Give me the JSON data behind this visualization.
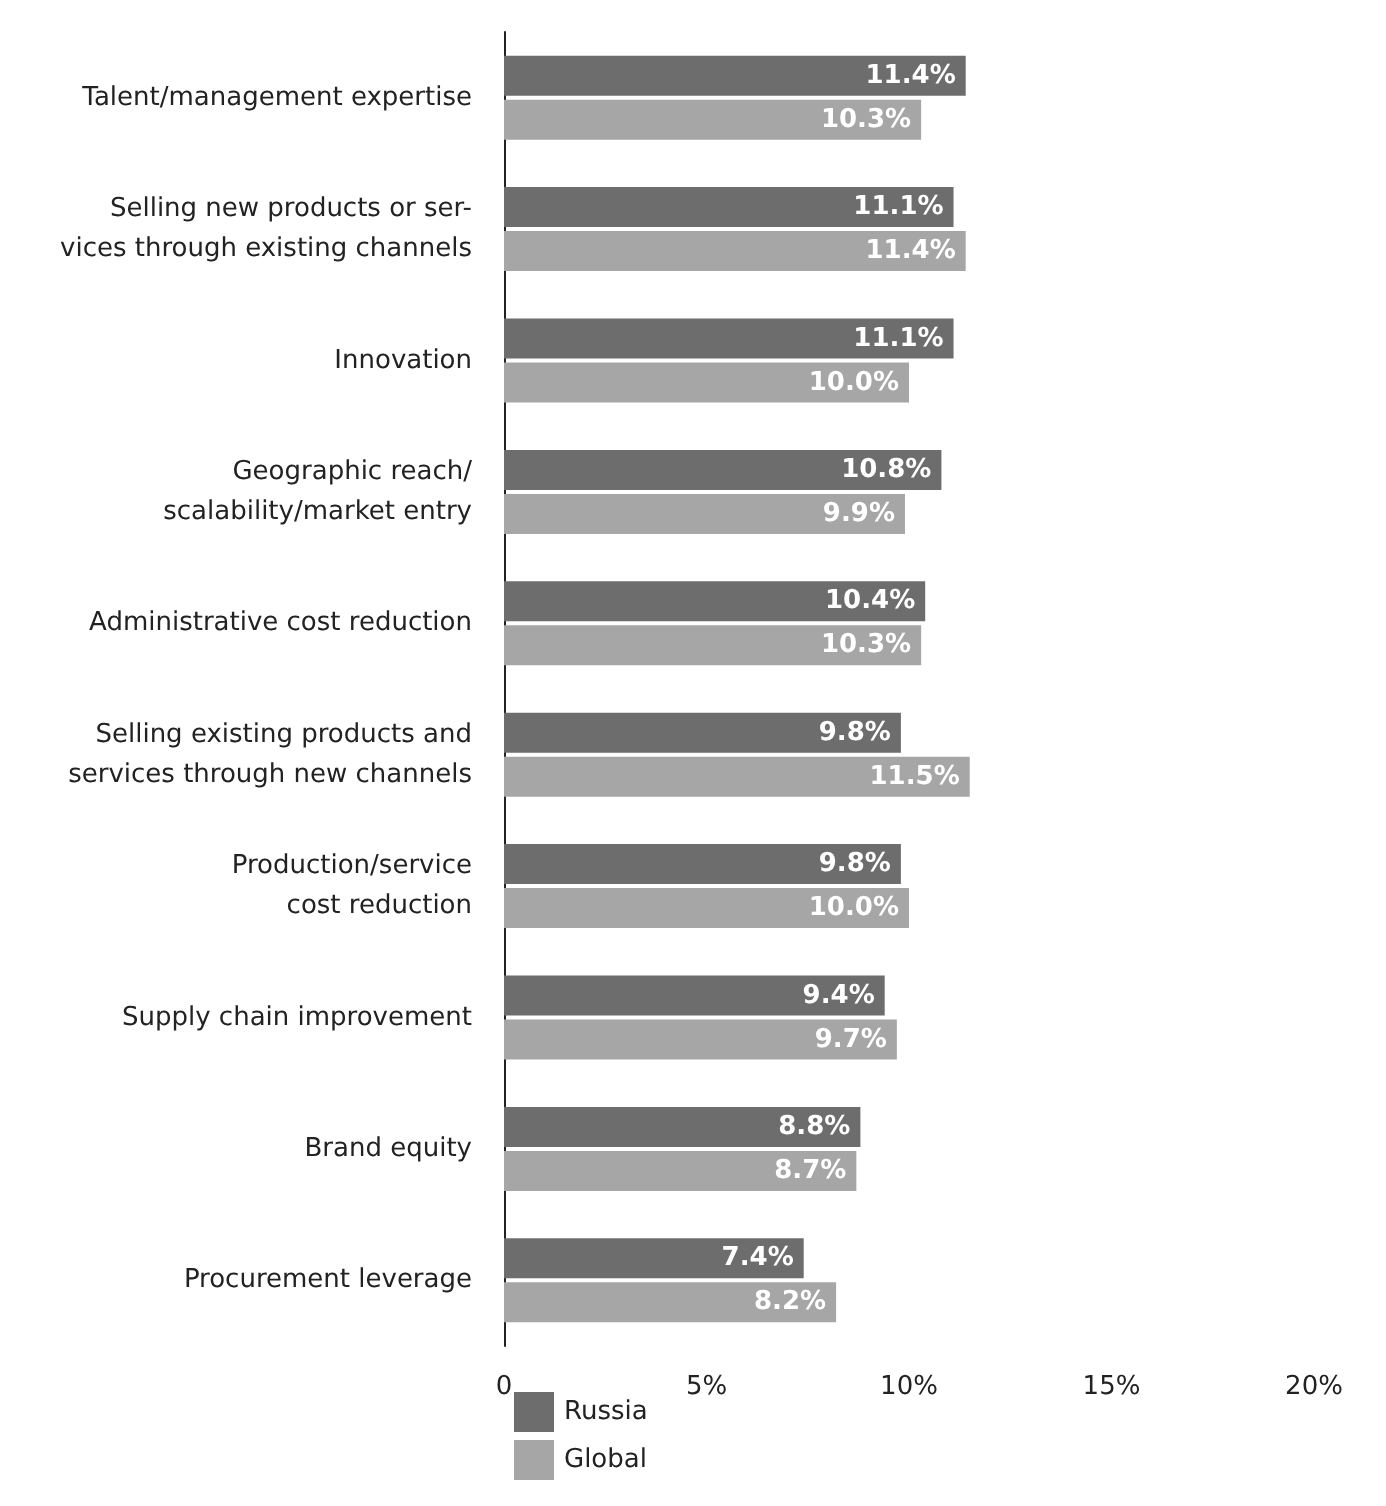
{
  "chart_data": {
    "type": "bar",
    "orientation": "horizontal",
    "categories": [
      "Talent/management expertise",
      "Selling new products or ser-\nvices through existing channels",
      "Innovation",
      "Geographic reach/\nscalability/market entry",
      "Administrative cost reduction",
      "Selling existing products and\nservices through new channels",
      "Production/service\ncost reduction",
      "Supply chain improvement",
      "Brand equity",
      "Procurement leverage"
    ],
    "series": [
      {
        "name": "Russia",
        "color": "#6d6d6d",
        "values": [
          11.4,
          11.1,
          11.1,
          10.8,
          10.4,
          9.8,
          9.8,
          9.4,
          8.8,
          7.4
        ],
        "value_labels": [
          "11.4%",
          "11.1%",
          "11.1%",
          "10.8%",
          "10.4%",
          "9.8%",
          "9.8%",
          "9.4%",
          "8.8%",
          "7.4%"
        ]
      },
      {
        "name": "Global",
        "color": "#a6a6a6",
        "values": [
          10.3,
          11.4,
          10.0,
          9.9,
          10.3,
          11.5,
          10.0,
          9.7,
          8.7,
          8.2
        ],
        "value_labels": [
          "10.3%",
          "11.4%",
          "10.0%",
          "9.9%",
          "10.3%",
          "11.5%",
          "10.0%",
          "9.7%",
          "8.7%",
          "8.2%"
        ]
      }
    ],
    "xlim": [
      0,
      20
    ],
    "xticks": [
      0,
      {
        "value": 5,
        "label": "5%"
      },
      {
        "value": 10,
        "label": "10%"
      },
      {
        "value": 15,
        "label": "15%"
      },
      {
        "value": 20,
        "label": "20%"
      }
    ],
    "grid": false,
    "legend": "bottom left"
  }
}
